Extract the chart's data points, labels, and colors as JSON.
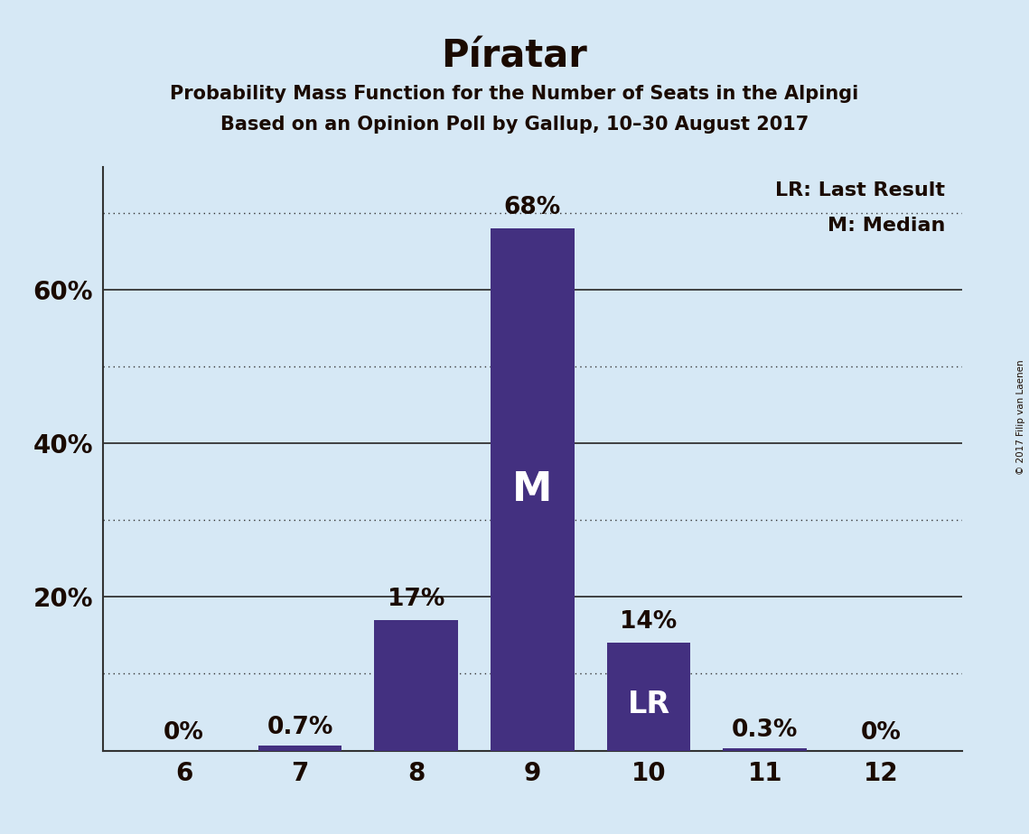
{
  "title": "Píratar",
  "subtitle1": "Probability Mass Function for the Number of Seats in the Alpingi",
  "subtitle2": "Based on an Opinion Poll by Gallup, 10–30 August 2017",
  "copyright": "© 2017 Filip van Laenen",
  "categories": [
    6,
    7,
    8,
    9,
    10,
    11,
    12
  ],
  "values": [
    0.0,
    0.7,
    17.0,
    68.0,
    14.0,
    0.3,
    0.0
  ],
  "labels": [
    "0%",
    "0.7%",
    "17%",
    "68%",
    "14%",
    "0.3%",
    "0%"
  ],
  "bar_color": "#433080",
  "background_color": "#d6e8f5",
  "text_color": "#1a0a00",
  "median_bar": 9,
  "lr_bar": 10,
  "median_label": "M",
  "lr_label": "LR",
  "legend_lr": "LR: Last Result",
  "legend_m": "M: Median",
  "ylim": [
    0,
    76
  ],
  "solid_grid": [
    20,
    40,
    60
  ],
  "dotted_grid": [
    10,
    30,
    50,
    70
  ],
  "ytick_positions": [
    20,
    40,
    60
  ],
  "ytick_labels": [
    "20%",
    "40%",
    "60%"
  ]
}
